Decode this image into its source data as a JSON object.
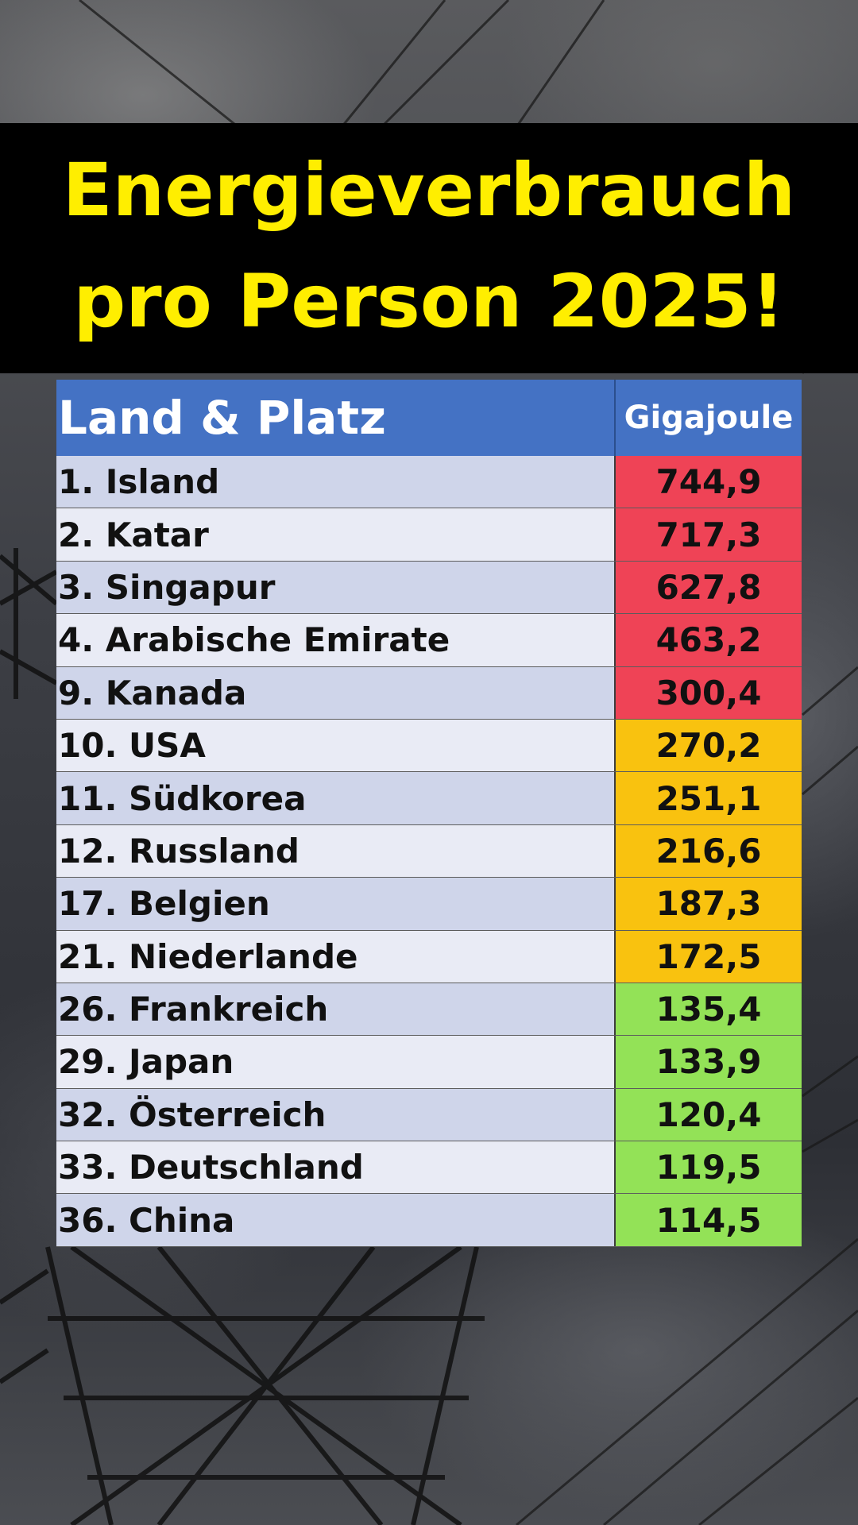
{
  "title": {
    "line1": "Energieverbrauch",
    "line2": "pro Person 2025!"
  },
  "chart_data": {
    "type": "table",
    "columns": [
      "Land & Platz",
      "Gigajoule"
    ],
    "rows": [
      {
        "label": "1. Island",
        "value": "744,9",
        "color": "#ef4356"
      },
      {
        "label": "2. Katar",
        "value": "717,3",
        "color": "#ef4356"
      },
      {
        "label": "3. Singapur",
        "value": "627,8",
        "color": "#ef4356"
      },
      {
        "label": "4. Arabische Emirate",
        "value": "463,2",
        "color": "#ef4356"
      },
      {
        "label": "9. Kanada",
        "value": "300,4",
        "color": "#ef4356"
      },
      {
        "label": "10. USA",
        "value": "270,2",
        "color": "#f9c20f"
      },
      {
        "label": "11. Südkorea",
        "value": "251,1",
        "color": "#f9c20f"
      },
      {
        "label": "12. Russland",
        "value": "216,6",
        "color": "#f9c20f"
      },
      {
        "label": "17. Belgien",
        "value": "187,3",
        "color": "#f9c20f"
      },
      {
        "label": "21. Niederlande",
        "value": "172,5",
        "color": "#f9c20f"
      },
      {
        "label": "26. Frankreich",
        "value": "135,4",
        "color": "#93e257"
      },
      {
        "label": "29. Japan",
        "value": "133,9",
        "color": "#93e257"
      },
      {
        "label": "32. Österreich",
        "value": "120,4",
        "color": "#93e257"
      },
      {
        "label": "33. Deutschland",
        "value": "119,5",
        "color": "#93e257"
      },
      {
        "label": "36. China",
        "value": "114,5",
        "color": "#93e257"
      }
    ]
  },
  "colors": {
    "title_text": "#ffee00",
    "title_band": "#000000",
    "header_bg": "#4472c4",
    "high": "#ef4356",
    "medium": "#f9c20f",
    "low": "#93e257"
  }
}
